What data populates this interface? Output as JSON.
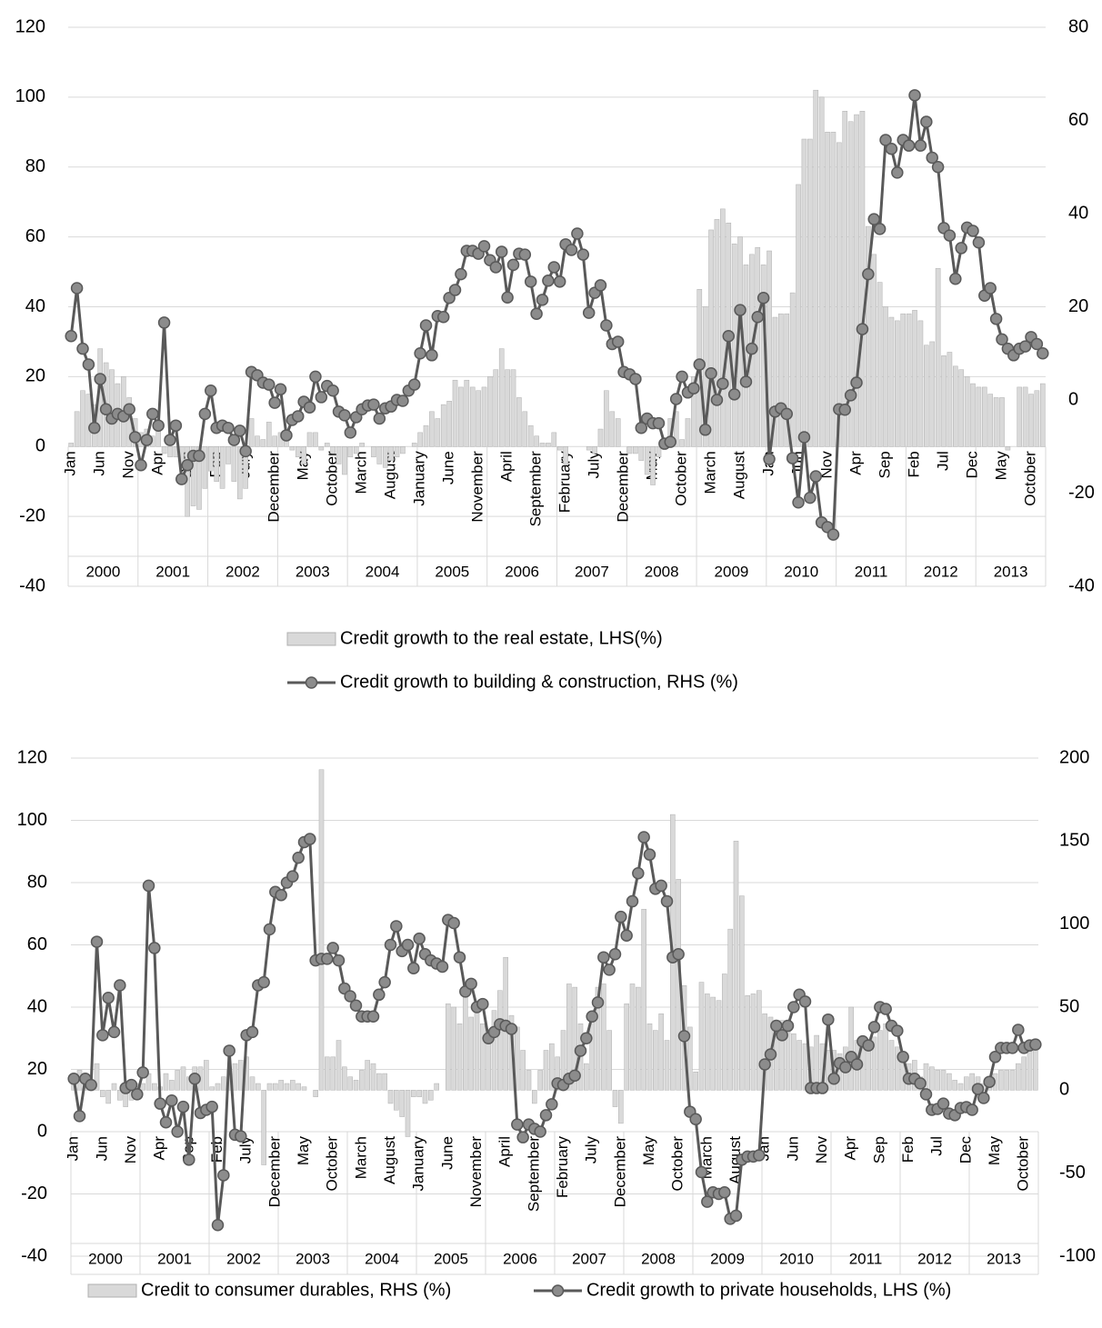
{
  "chart_data": [
    {
      "type": "combo",
      "categories": [
        "Jan",
        null,
        null,
        null,
        null,
        "Jun",
        null,
        null,
        null,
        null,
        "Nov",
        null,
        null,
        null,
        null,
        "Apr",
        null,
        null,
        null,
        null,
        "Sep",
        null,
        null,
        null,
        null,
        "Feb",
        null,
        null,
        null,
        null,
        "July",
        null,
        null,
        null,
        null,
        "December",
        null,
        null,
        null,
        null,
        "May",
        null,
        null,
        null,
        null,
        "October",
        null,
        null,
        null,
        null,
        "March",
        null,
        null,
        null,
        null,
        "August",
        null,
        null,
        null,
        null,
        "January",
        null,
        null,
        null,
        null,
        "June",
        null,
        null,
        null,
        null,
        "November",
        null,
        null,
        null,
        null,
        "April",
        null,
        null,
        null,
        null,
        "September",
        null,
        null,
        null,
        null,
        "February",
        null,
        null,
        null,
        null,
        "July",
        null,
        null,
        null,
        null,
        "December",
        null,
        null,
        null,
        null,
        "May",
        null,
        null,
        null,
        null,
        "October",
        null,
        null,
        null,
        null,
        "March",
        null,
        null,
        null,
        null,
        "August",
        null,
        null,
        null,
        null,
        "Jan",
        null,
        null,
        null,
        null,
        "Jun",
        null,
        null,
        null,
        null,
        "Nov",
        null,
        null,
        null,
        null,
        "Apr",
        null,
        null,
        null,
        null,
        "Sep",
        null,
        null,
        null,
        null,
        "Feb",
        null,
        null,
        null,
        null,
        "Jul",
        null,
        null,
        null,
        null,
        "Dec",
        null,
        null,
        null,
        null,
        "May",
        null,
        null,
        null,
        null,
        "October",
        null,
        null
      ],
      "groups": [
        "2000",
        "2001",
        "2002",
        "2003",
        "2004",
        "2005",
        "2006",
        "2007",
        "2008",
        "2009",
        "2010",
        "2011",
        "2012",
        "2013"
      ],
      "ylim": [
        -40,
        120
      ],
      "yticks": [
        -40,
        -20,
        0,
        20,
        40,
        60,
        80,
        100,
        120
      ],
      "y2lim": [
        -40,
        80
      ],
      "y2ticks": [
        -40,
        -20,
        0,
        20,
        40,
        60,
        80
      ],
      "grid": true,
      "series": [
        {
          "name": "Credit growth to the real estate, LHS(%)",
          "type": "bar",
          "color": "#d9d9d9",
          "values": [
            1,
            10,
            16,
            15,
            12,
            28,
            24,
            22,
            18,
            20,
            14,
            8,
            4,
            5,
            3,
            5,
            -2,
            -3,
            -3,
            -6,
            -20,
            -17,
            -18,
            -12,
            -7,
            -10,
            -12,
            -5,
            -10,
            -15,
            -12,
            8,
            3,
            2,
            7,
            3,
            4,
            2,
            -1,
            -3,
            -5,
            4,
            4,
            -1,
            1,
            -2,
            -5,
            -8,
            -3,
            -2,
            1,
            0,
            -3,
            -5,
            -6,
            -4,
            -3,
            -2,
            0,
            1,
            4,
            6,
            10,
            8,
            12,
            13,
            19,
            17,
            19,
            17,
            16,
            17,
            20,
            22,
            28,
            22,
            22,
            14,
            10,
            6,
            3,
            1,
            1,
            4,
            -1,
            -5,
            0,
            0,
            0,
            -1,
            -2,
            5,
            16,
            10,
            8,
            0,
            -2,
            -2,
            -4,
            -8,
            -11,
            -3,
            1,
            8,
            10,
            2,
            8,
            20,
            45,
            40,
            62,
            65,
            68,
            64,
            58,
            60,
            52,
            55,
            57,
            52,
            56,
            37,
            38,
            38,
            44,
            75,
            88,
            88,
            102,
            100,
            90,
            90,
            87,
            96,
            93,
            95,
            96,
            63,
            55,
            47,
            40,
            37,
            36,
            38,
            38,
            39,
            36,
            29,
            30,
            51,
            26,
            27,
            23,
            22,
            20,
            18,
            17,
            17,
            15,
            14,
            14,
            -1,
            0,
            17,
            17,
            15,
            16,
            18
          ]
        },
        {
          "name": "Credit growth to building & construction, RHS (%)",
          "type": "line",
          "axis": "y2",
          "color": "#595959",
          "values": [
            13.7,
            24,
            11,
            7.6,
            -6,
            4.5,
            -2,
            -4,
            -3,
            -3.5,
            -2,
            -8,
            -14,
            -8.6,
            -3,
            -5.5,
            16.6,
            -8.6,
            -5.5,
            -17,
            -14,
            -12,
            -12,
            -3,
            2,
            -6,
            -5.5,
            -6,
            -8.6,
            -6.6,
            -11,
            6,
            5.3,
            3.7,
            3.3,
            -0.6,
            2.3,
            -7.6,
            -4.3,
            -3.5,
            -0.4,
            -1.6,
            5,
            0.6,
            3,
            2,
            -2.5,
            -3.3,
            -7,
            -3.7,
            -2,
            -1.2,
            -1,
            -4,
            -1.8,
            -1.4,
            0,
            -0.2,
            2,
            3.3,
            10,
            16,
            9.6,
            18,
            17.8,
            21.9,
            23.6,
            27,
            32,
            32,
            31.4,
            33,
            30,
            28.5,
            31.8,
            22,
            29,
            31.4,
            31.2,
            25.4,
            18.5,
            21.5,
            25.6,
            28.5,
            25.4,
            33.4,
            32.2,
            35.7,
            31.2,
            18.7,
            23,
            24.6,
            16,
            12,
            12.5,
            6,
            5.5,
            4.5,
            -6,
            -4,
            -5,
            -5,
            -9.4,
            -9,
            0.2,
            5,
            1.6,
            2.5,
            7.6,
            -6.4,
            5.7,
            0,
            3.5,
            13.7,
            1.2,
            19.3,
            3.9,
            11,
            17.8,
            21.9,
            -12.7,
            -2.5,
            -1.8,
            -3,
            -12.5,
            -22,
            -8,
            -21,
            -16.4,
            -26.3,
            -27.3,
            -28.9,
            -2,
            -2.1,
            1,
            3.7,
            15.2,
            27,
            38.8,
            36.7,
            55.8,
            53.9,
            48.8,
            55.8,
            54.6,
            65.4,
            54.6,
            59.7,
            52,
            50,
            36.9,
            35.3,
            26,
            32.6,
            37,
            36.3,
            33.8,
            22.4,
            24,
            17.4,
            13,
            11,
            9.6,
            11,
            11.5,
            13.5,
            12,
            10
          ]
        }
      ]
    },
    {
      "type": "combo",
      "categories": [
        "Jan",
        null,
        null,
        null,
        null,
        "Jun",
        null,
        null,
        null,
        null,
        "Nov",
        null,
        null,
        null,
        null,
        "Apr",
        null,
        null,
        null,
        null,
        "Sep",
        null,
        null,
        null,
        null,
        "Feb",
        null,
        null,
        null,
        null,
        "July",
        null,
        null,
        null,
        null,
        "December",
        null,
        null,
        null,
        null,
        "May",
        null,
        null,
        null,
        null,
        "October",
        null,
        null,
        null,
        null,
        "March",
        null,
        null,
        null,
        null,
        "August",
        null,
        null,
        null,
        null,
        "January",
        null,
        null,
        null,
        null,
        "June",
        null,
        null,
        null,
        null,
        "November",
        null,
        null,
        null,
        null,
        "April",
        null,
        null,
        null,
        null,
        "September",
        null,
        null,
        null,
        null,
        "February",
        null,
        null,
        null,
        null,
        "July",
        null,
        null,
        null,
        null,
        "December",
        null,
        null,
        null,
        null,
        "May",
        null,
        null,
        null,
        null,
        "October",
        null,
        null,
        null,
        null,
        "March",
        null,
        null,
        null,
        null,
        "August",
        null,
        null,
        null,
        null,
        "Jan",
        null,
        null,
        null,
        null,
        "Jun",
        null,
        null,
        null,
        null,
        "Nov",
        null,
        null,
        null,
        null,
        "Apr",
        null,
        null,
        null,
        null,
        "Sep",
        null,
        null,
        null,
        null,
        "Feb",
        null,
        null,
        null,
        null,
        "Jul",
        null,
        null,
        null,
        null,
        "Dec",
        null,
        null,
        null,
        null,
        "May",
        null,
        null,
        null,
        null,
        "October",
        null,
        null
      ],
      "groups": [
        "2000",
        "2001",
        "2002",
        "2003",
        "2004",
        "2005",
        "2006",
        "2007",
        "2008",
        "2009",
        "2010",
        "2011",
        "2012",
        "2013"
      ],
      "ylim": [
        -40,
        120
      ],
      "yticks": [
        -40,
        -20,
        0,
        20,
        40,
        60,
        80,
        100,
        120
      ],
      "y2lim": [
        -100,
        200
      ],
      "y2ticks": [
        -100,
        -50,
        0,
        50,
        100,
        150,
        200
      ],
      "grid": true,
      "series": [
        {
          "name": "Credit to consumer durables, RHS (%)",
          "type": "bar",
          "axis": "y2",
          "color": "#d9d9d9",
          "values": [
            8,
            12,
            10,
            6,
            16,
            -4,
            -8,
            4,
            -6,
            -10,
            -6,
            4,
            4,
            10,
            4,
            2,
            10,
            6,
            12,
            14,
            8,
            14,
            14,
            18,
            2,
            4,
            8,
            12,
            16,
            18,
            20,
            8,
            4,
            -45,
            4,
            4,
            6,
            4,
            6,
            4,
            2,
            0,
            -4,
            193,
            20,
            20,
            30,
            14,
            8,
            6,
            12,
            18,
            16,
            10,
            10,
            -8,
            -12,
            -16,
            -28,
            -4,
            -4,
            -8,
            -6,
            4,
            0,
            52,
            50,
            40,
            60,
            44,
            48,
            40,
            36,
            48,
            60,
            80,
            45,
            38,
            24,
            12,
            -8,
            12,
            24,
            28,
            20,
            36,
            64,
            62,
            40,
            16,
            46,
            62,
            64,
            36,
            -10,
            -20,
            52,
            64,
            62,
            109,
            40,
            36,
            46,
            30,
            166,
            127,
            63,
            38,
            11,
            65,
            58,
            56,
            54,
            70,
            97,
            150,
            117,
            57,
            58,
            60,
            46,
            44,
            40,
            42,
            38,
            34,
            30,
            28,
            26,
            33,
            28,
            24,
            24,
            22,
            26,
            50,
            30,
            28,
            24,
            32,
            36,
            40,
            30,
            26,
            20,
            16,
            18,
            8,
            16,
            14,
            12,
            12,
            10,
            6,
            4,
            8,
            10,
            8,
            4,
            2,
            10,
            12,
            12,
            12,
            16,
            20,
            24,
            28
          ]
        },
        {
          "name": "Credit growth to private households, LHS (%)",
          "type": "line",
          "color": "#595959",
          "values": [
            17,
            5,
            17,
            15,
            61,
            31,
            43,
            32,
            47,
            14,
            15,
            12,
            19,
            79,
            59,
            9,
            3,
            10,
            0,
            8,
            -9,
            17,
            6,
            7,
            8,
            -30,
            -14,
            26,
            -1,
            -1.5,
            31,
            32,
            47,
            48,
            65,
            77,
            76,
            80,
            82,
            88,
            93,
            94,
            55,
            55.5,
            55.5,
            59,
            55,
            46,
            43.5,
            40.5,
            37,
            37,
            37,
            44,
            48,
            60,
            66,
            58,
            60,
            52.5,
            62,
            57,
            55,
            54,
            53,
            68,
            67,
            56,
            45,
            47.5,
            40,
            41,
            30,
            32,
            34.5,
            34,
            33,
            2.3,
            -1.8,
            2.3,
            0.9,
            0,
            5.3,
            8.8,
            15.5,
            15,
            17,
            18,
            26,
            30,
            37,
            41.5,
            56,
            52,
            57,
            69,
            63,
            74,
            83,
            94.6,
            89,
            78,
            79,
            74,
            56,
            57,
            30.7,
            6.4,
            4,
            -13,
            -22.5,
            -19.5,
            -20,
            -19.5,
            -28,
            -27,
            -9,
            -8,
            -8,
            -7.6,
            21.6,
            24.8,
            34,
            31,
            34,
            40,
            44,
            41.8,
            14,
            14,
            14,
            36,
            17,
            22,
            20.7,
            24,
            21.6,
            29,
            27.7,
            33.6,
            40,
            39.4,
            34,
            32.4,
            24,
            17,
            17,
            15.5,
            12,
            7,
            7.3,
            9,
            5.8,
            5.3,
            7.6,
            7.9,
            7,
            13.7,
            10.8,
            16,
            24,
            26.9,
            26.9,
            26.9,
            32.7,
            26.9,
            27.7,
            28
          ]
        }
      ]
    }
  ]
}
